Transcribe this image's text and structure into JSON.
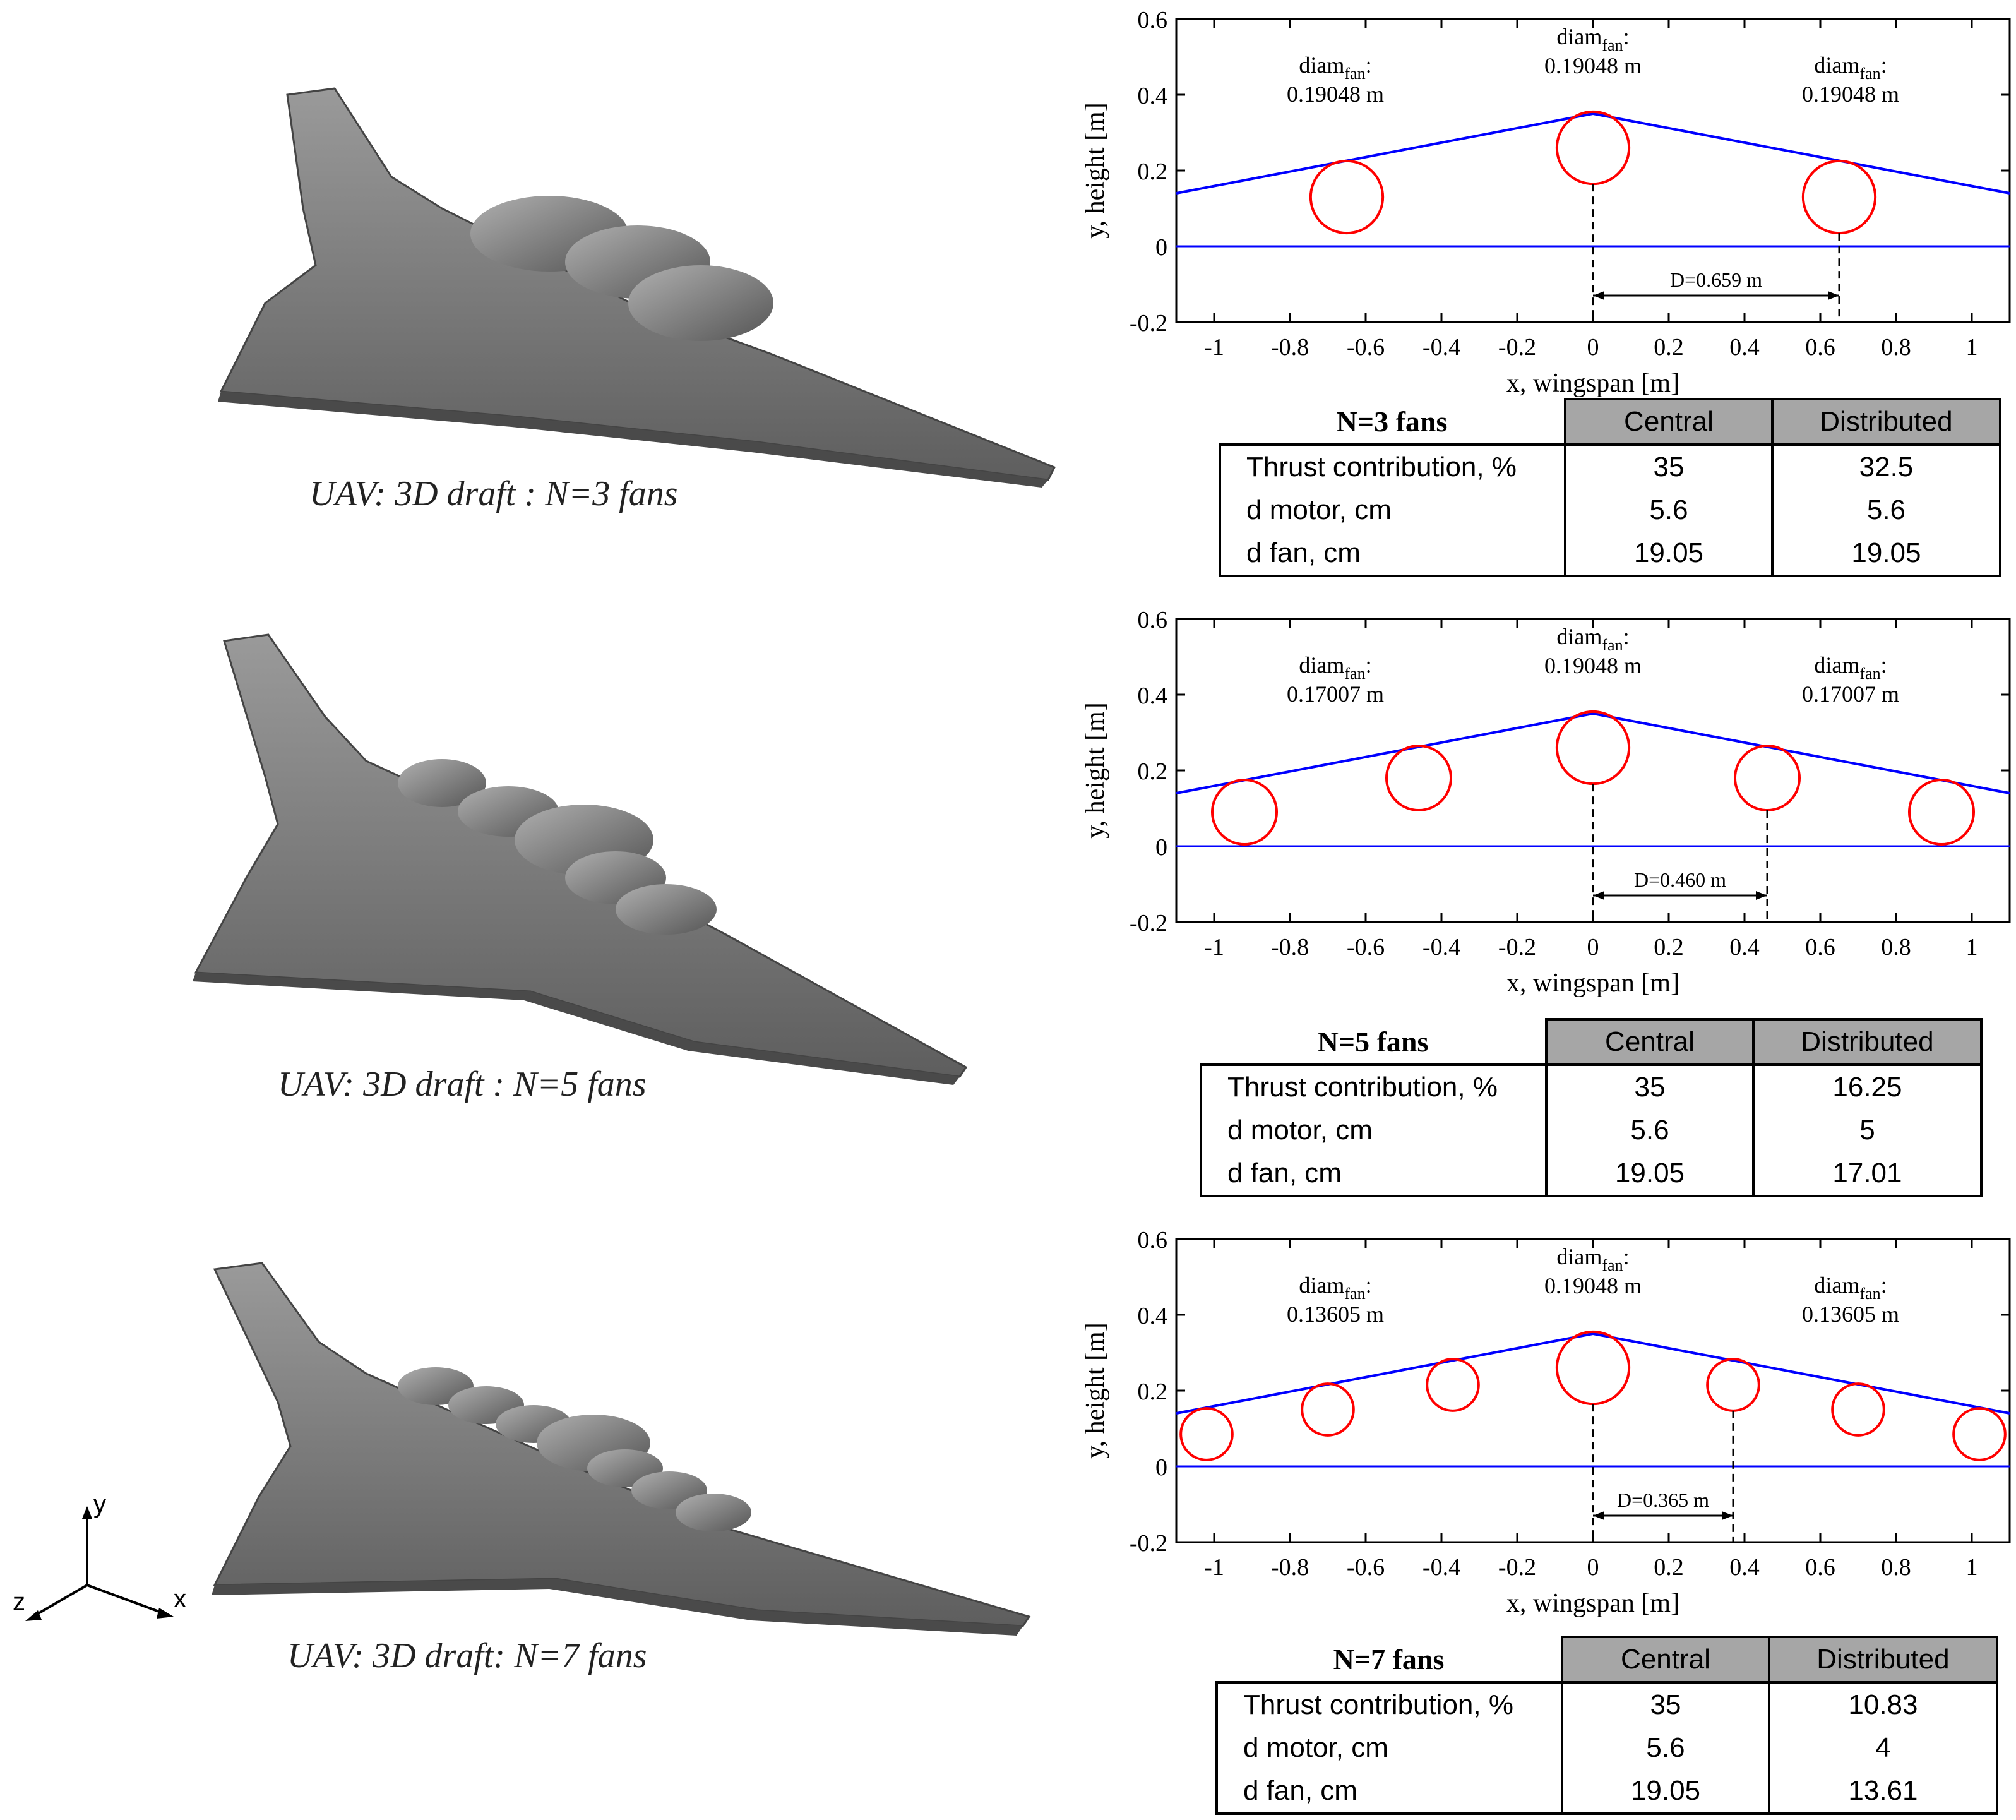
{
  "rows": [
    {
      "caption": "UAV: 3D draft : N=3 fans",
      "n": 3,
      "plot": {
        "ylabel": "y, height [m]",
        "xlabel": "x, wingspan [m]",
        "xticks": [
          "-1",
          "-0.8",
          "-0.6",
          "-0.4",
          "-0.2",
          "0",
          "0.2",
          "0.4",
          "0.6",
          "0.8",
          "1"
        ],
        "yticks": [
          "0.6",
          "0.4",
          "0.2",
          "0",
          "-0.2"
        ],
        "label_left": {
          "line1": "diam",
          "sub": "fan",
          "suffix": ":",
          "line2": "0.19048 m"
        },
        "label_center": {
          "line1": "diam",
          "sub": "fan",
          "suffix": ":",
          "line2": "0.19048 m"
        },
        "label_right": {
          "line1": "diam",
          "sub": "fan",
          "suffix": ":",
          "line2": "0.19048 m"
        },
        "spacing_label": "D=0.659 m"
      },
      "table": {
        "title": "N=3 fans",
        "col_central": "Central",
        "col_distributed": "Distributed",
        "rows": [
          {
            "label": "Thrust contribution, %",
            "central": "35",
            "distributed": "32.5"
          },
          {
            "label": "d motor, cm",
            "central": "5.6",
            "distributed": "5.6"
          },
          {
            "label": "d fan, cm",
            "central": "19.05",
            "distributed": "19.05"
          }
        ]
      }
    },
    {
      "caption": "UAV: 3D draft : N=5 fans",
      "n": 5,
      "plot": {
        "ylabel": "y, height [m]",
        "xlabel": "x, wingspan [m]",
        "xticks": [
          "-1",
          "-0.8",
          "-0.6",
          "-0.4",
          "-0.2",
          "0",
          "0.2",
          "0.4",
          "0.6",
          "0.8",
          "1"
        ],
        "yticks": [
          "0.6",
          "0.4",
          "0.2",
          "0",
          "-0.2"
        ],
        "label_left": {
          "line1": "diam",
          "sub": "fan",
          "suffix": ":",
          "line2": "0.17007 m"
        },
        "label_center": {
          "line1": "diam",
          "sub": "fan",
          "suffix": ":",
          "line2": "0.19048 m"
        },
        "label_right": {
          "line1": "diam",
          "sub": "fan",
          "suffix": ":",
          "line2": "0.17007 m"
        },
        "spacing_label": "D=0.460 m"
      },
      "table": {
        "title": "N=5 fans",
        "col_central": "Central",
        "col_distributed": "Distributed",
        "rows": [
          {
            "label": "Thrust contribution, %",
            "central": "35",
            "distributed": "16.25"
          },
          {
            "label": "d motor, cm",
            "central": "5.6",
            "distributed": "5"
          },
          {
            "label": "d fan, cm",
            "central": "19.05",
            "distributed": "17.01"
          }
        ]
      }
    },
    {
      "caption": "UAV: 3D draft: N=7 fans",
      "n": 7,
      "plot": {
        "ylabel": "y, height [m]",
        "xlabel": "x, wingspan [m]",
        "xticks": [
          "-1",
          "-0.8",
          "-0.6",
          "-0.4",
          "-0.2",
          "0",
          "0.2",
          "0.4",
          "0.6",
          "0.8",
          "1"
        ],
        "yticks": [
          "0.6",
          "0.4",
          "0.2",
          "0",
          "-0.2"
        ],
        "label_left": {
          "line1": "diam",
          "sub": "fan",
          "suffix": ":",
          "line2": "0.13605 m"
        },
        "label_center": {
          "line1": "diam",
          "sub": "fan",
          "suffix": ":",
          "line2": "0.19048 m"
        },
        "label_right": {
          "line1": "diam",
          "sub": "fan",
          "suffix": ":",
          "line2": "0.13605 m"
        },
        "spacing_label": "D=0.365 m"
      },
      "table": {
        "title": "N=7 fans",
        "col_central": "Central",
        "col_distributed": "Distributed",
        "rows": [
          {
            "label": "Thrust contribution, %",
            "central": "35",
            "distributed": "10.83"
          },
          {
            "label": "d motor, cm",
            "central": "5.6",
            "distributed": "4"
          },
          {
            "label": "d fan, cm",
            "central": "19.05",
            "distributed": "13.61"
          }
        ]
      }
    }
  ],
  "axes_icon": {
    "x": "x",
    "y": "y",
    "z": "z"
  },
  "colors": {
    "wing_line": "#0000ff",
    "fan_circle": "#ff0000",
    "uav_body": "#7a7a7a",
    "table_header": "#a6a6a6"
  },
  "chart_data": [
    {
      "type": "scatter",
      "title": "",
      "xlabel": "x, wingspan [m]",
      "ylabel": "y, height [m]",
      "xlim": [
        -1.1,
        1.1
      ],
      "ylim": [
        -0.2,
        0.6
      ],
      "series": [
        {
          "name": "",
          "x": [
            -1.1,
            0,
            1.1
          ],
          "y": [
            0.14,
            0.35,
            0.14
          ]
        },
        {
          "name": "",
          "x": [
            -0.65,
            0,
            0.65
          ],
          "y": [
            0.13,
            0.26,
            0.13
          ],
          "diameter": [
            0.19048,
            0.19048,
            0.19048
          ]
        }
      ],
      "spacing": 0.659
    },
    {
      "type": "scatter",
      "title": "",
      "xlabel": "x, wingspan [m]",
      "ylabel": "y, height [m]",
      "xlim": [
        -1.1,
        1.1
      ],
      "ylim": [
        -0.2,
        0.6
      ],
      "series": [
        {
          "name": "",
          "x": [
            -1.1,
            0,
            1.1
          ],
          "y": [
            0.14,
            0.35,
            0.14
          ]
        },
        {
          "name": "",
          "x": [
            -0.92,
            -0.46,
            0,
            0.46,
            0.92
          ],
          "y": [
            0.09,
            0.18,
            0.26,
            0.18,
            0.09
          ],
          "diameter": [
            0.17007,
            0.17007,
            0.19048,
            0.17007,
            0.17007
          ]
        }
      ],
      "spacing": 0.46
    },
    {
      "type": "scatter",
      "title": "",
      "xlabel": "x, wingspan [m]",
      "ylabel": "y, height [m]",
      "xlim": [
        -1.1,
        1.1
      ],
      "ylim": [
        -0.2,
        0.6
      ],
      "series": [
        {
          "name": "",
          "x": [
            -1.1,
            0,
            1.1
          ],
          "y": [
            0.14,
            0.35,
            0.14
          ]
        },
        {
          "name": "",
          "x": [
            -1.02,
            -0.7,
            -0.37,
            0,
            0.37,
            0.7,
            1.02
          ],
          "y": [
            0.085,
            0.15,
            0.215,
            0.26,
            0.215,
            0.15,
            0.085
          ],
          "diameter": [
            0.13605,
            0.13605,
            0.13605,
            0.19048,
            0.13605,
            0.13605,
            0.13605
          ]
        }
      ],
      "spacing": 0.365
    }
  ]
}
